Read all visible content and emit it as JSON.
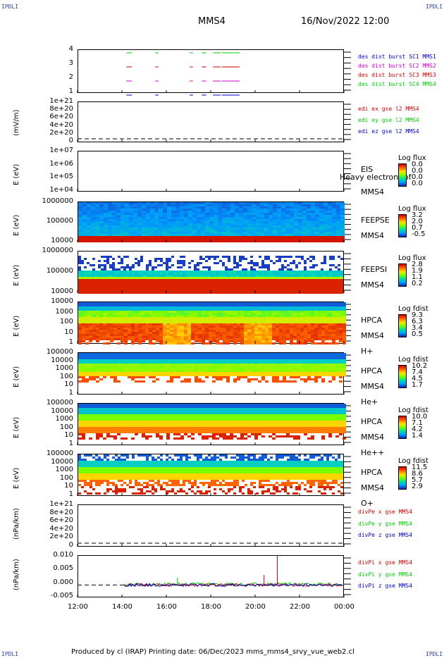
{
  "corners": {
    "tl": "IPDLI",
    "tr": "IPDLI",
    "bl": "IPDLI",
    "br": "IPDLI"
  },
  "header": {
    "spacecraft": "MMS4",
    "datetime": "16/Nov/2022 12:00"
  },
  "footer": {
    "text": "Produced by cl (IRAP)    Printing date: 06/Dec/2023    mms_mms4_srvy_vue_web2.cl"
  },
  "colors": {
    "red": "#cc0000",
    "green": "#00cc00",
    "blue": "#0000cc",
    "magenta": "#cc00cc"
  },
  "xaxis": {
    "ticks": [
      "12:00",
      "14:00",
      "16:00",
      "18:00",
      "20:00",
      "22:00",
      "00:00"
    ]
  },
  "panels": [
    {
      "id": "burst",
      "yticks": [
        "4",
        "3",
        "2",
        "1"
      ],
      "legend": [
        {
          "text": "des dist burst SC1 MMS1",
          "color": "#0000cc"
        },
        {
          "text": "des dist burst SC2 MMS2",
          "color": "#cc00cc"
        },
        {
          "text": "des dist burst SC3 MMS3",
          "color": "#cc0000"
        },
        {
          "text": "des dist burst SC4 MMS4",
          "color": "#00cc00"
        }
      ]
    },
    {
      "id": "edi",
      "ylabel": "(mV/m)",
      "yticks": [
        "1e+21",
        "8e+20",
        "6e+20",
        "4e+20",
        "2e+20",
        "0"
      ],
      "legend": [
        {
          "text": "edi ex gse l2 MMS4",
          "color": "#cc0000"
        },
        {
          "text": "edi ey gse l2 MMS4",
          "color": "#00cc00"
        },
        {
          "text": "edi ez gse l2 MMS4",
          "color": "#0000cc"
        }
      ]
    },
    {
      "id": "eis",
      "ylabel": "E (eV)",
      "yticks": [
        "1e+07",
        "1e+06",
        "1e+05",
        "1e+04"
      ],
      "labels": [
        "EIS",
        "Heavy electron tof",
        "MMS4"
      ],
      "cbtitle": "Log flux",
      "cbticks": [
        "0.0",
        "0.0",
        "0.0",
        "0.0"
      ]
    },
    {
      "id": "feepse",
      "ylabel": "E (eV)",
      "yticks": [
        "1000000",
        "100000",
        "10000"
      ],
      "labels": [
        "FEEPSE",
        "MMS4"
      ],
      "cbtitle": "Log flux",
      "cbticks": [
        "3.2",
        "2.0",
        "0.7",
        "-0.5"
      ]
    },
    {
      "id": "feepsi",
      "ylabel": "E (eV)",
      "yticks": [
        "1000000",
        "100000",
        "10000"
      ],
      "labels": [
        "FEEPSI",
        "MMS4"
      ],
      "cbtitle": "Log flux",
      "cbticks": [
        "2.8",
        "1.9",
        "1.1",
        "0.2"
      ]
    },
    {
      "id": "hpca-h",
      "ylabel": "E (eV)",
      "yticks": [
        "10000",
        "1000",
        "100",
        "10",
        "1"
      ],
      "labels": [
        "HPCA",
        "MMS4",
        "H+"
      ],
      "cbtitle": "Log fdist",
      "cbticks": [
        "9.3",
        "6.3",
        "3.4",
        "0.5"
      ]
    },
    {
      "id": "hpca-he",
      "ylabel": "E (eV)",
      "yticks": [
        "100000",
        "10000",
        "1000",
        "100",
        "10",
        "1"
      ],
      "labels": [
        "HPCA",
        "MMS4",
        "He+"
      ],
      "cbtitle": "Log fdist",
      "cbticks": [
        "10.2",
        "7.4",
        "4.5",
        "1.7"
      ]
    },
    {
      "id": "hpca-hepp",
      "ylabel": "E (eV)",
      "yticks": [
        "100000",
        "10000",
        "1000",
        "100",
        "10",
        "1"
      ],
      "labels": [
        "HPCA",
        "MMS4",
        "He++"
      ],
      "cbtitle": "Log fdist",
      "cbticks": [
        "10.0",
        "7.1",
        "4.2",
        "1.4"
      ]
    },
    {
      "id": "hpca-o",
      "ylabel": "E (eV)",
      "yticks": [
        "100000",
        "10000",
        "1000",
        "100",
        "10",
        "1"
      ],
      "labels": [
        "HPCA",
        "MMS4",
        "O+"
      ],
      "cbtitle": "Log fdist",
      "cbticks": [
        "11.5",
        "8.6",
        "5.7",
        "2.9"
      ]
    },
    {
      "id": "divpe",
      "ylabel": "(nPa/km)",
      "yticks": [
        "1e+21",
        "8e+20",
        "6e+20",
        "4e+20",
        "2e+20",
        "0"
      ],
      "legend": [
        {
          "text": "divPe x gse MMS4",
          "color": "#cc0000"
        },
        {
          "text": "divPe y gse MMS4",
          "color": "#00cc00"
        },
        {
          "text": "divPe z gse MMS4",
          "color": "#0000cc"
        }
      ]
    },
    {
      "id": "divpi",
      "ylabel": "(nPa/km)",
      "yticks": [
        "0.010",
        "0.005",
        "0.000",
        "-0.005"
      ],
      "legend": [
        {
          "text": "divPi x gse MMS4",
          "color": "#cc0000"
        },
        {
          "text": "divPi y gse MMS4",
          "color": "#00cc00"
        },
        {
          "text": "divPi z gse MMS4",
          "color": "#0000cc"
        }
      ]
    }
  ],
  "chart_data": {
    "type": "line",
    "x": [
      "12:00",
      "14:00",
      "16:00",
      "18:00",
      "20:00",
      "22:00",
      "00:00"
    ],
    "burst_intervals_hours": [
      [
        14.2,
        14.45
      ],
      [
        15.5,
        15.65
      ],
      [
        17.05,
        17.2
      ],
      [
        17.6,
        17.8
      ],
      [
        18.1,
        18.45
      ],
      [
        18.5,
        19.3
      ]
    ],
    "divPi_ylim": [
      -0.005,
      0.012
    ],
    "divPi_spikes": [
      {
        "t": 21.0,
        "value": 0.012,
        "series": "divPi x gse MMS4"
      },
      {
        "t": 20.4,
        "value": 0.004,
        "series": "divPi x gse MMS4"
      },
      {
        "t": 16.5,
        "value": 0.003,
        "series": "divPi y gse MMS4"
      }
    ]
  }
}
